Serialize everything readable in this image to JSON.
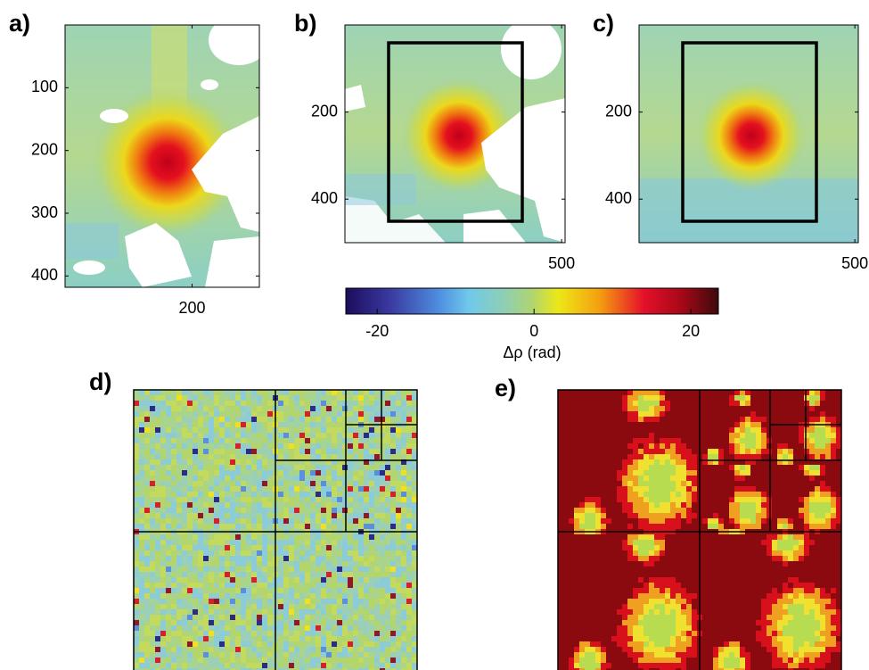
{
  "panels": [
    {
      "label": "a)",
      "xlim": [
        0,
        306
      ],
      "ylim": [
        0,
        418
      ],
      "xticks": [
        200
      ],
      "yticks": [
        100,
        200,
        300,
        400
      ]
    },
    {
      "label": "b)",
      "xlim": [
        0,
        508
      ],
      "ylim": [
        0,
        500
      ],
      "xticks": [
        500
      ],
      "yticks": [
        200,
        400
      ]
    },
    {
      "label": "c)",
      "xlim": [
        0,
        508
      ],
      "ylim": [
        0,
        500
      ],
      "xticks": [
        500
      ],
      "yticks": [
        200,
        400
      ]
    },
    {
      "label": "d)"
    },
    {
      "label": "e)"
    }
  ],
  "colorbar": {
    "label": "Δρ (rad)",
    "lim": [
      -24,
      23.5
    ],
    "ticks": [
      -20,
      0,
      20
    ]
  }
}
